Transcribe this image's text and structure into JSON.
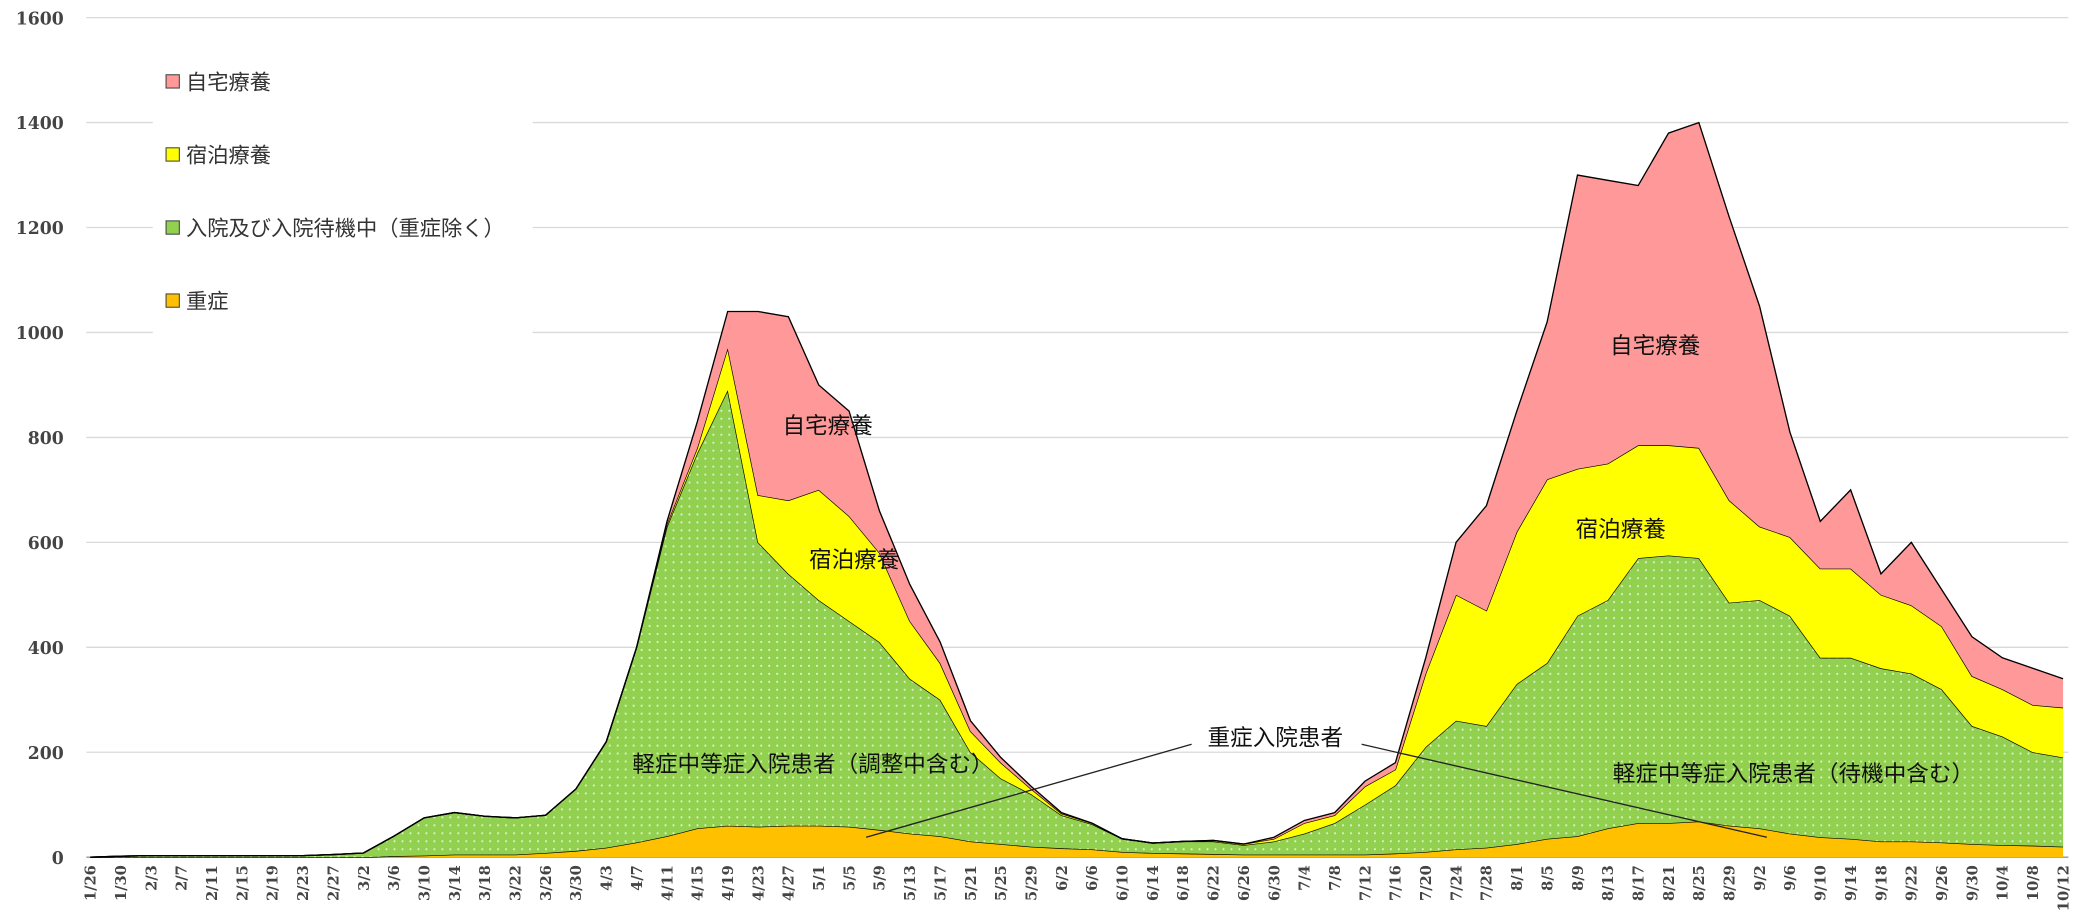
{
  "chart_data": {
    "type": "stacked_area",
    "categories": [
      "1/26",
      "1/30",
      "2/3",
      "2/7",
      "2/11",
      "2/15",
      "2/19",
      "2/23",
      "2/27",
      "3/2",
      "3/6",
      "3/10",
      "3/14",
      "3/18",
      "3/22",
      "3/26",
      "3/30",
      "4/3",
      "4/7",
      "4/11",
      "4/15",
      "4/19",
      "4/23",
      "4/27",
      "5/1",
      "5/5",
      "5/9",
      "5/13",
      "5/17",
      "5/21",
      "5/25",
      "5/29",
      "6/2",
      "6/6",
      "6/10",
      "6/14",
      "6/18",
      "6/22",
      "6/26",
      "6/30",
      "7/4",
      "7/8",
      "7/12",
      "7/16",
      "7/20",
      "7/24",
      "7/28",
      "8/1",
      "8/5",
      "8/9",
      "8/13",
      "8/17",
      "8/21",
      "8/25",
      "8/29",
      "9/2",
      "9/6",
      "9/10",
      "9/14",
      "9/18",
      "9/22",
      "9/26",
      "9/30",
      "10/4",
      "10/8",
      "10/12"
    ],
    "series": [
      {
        "name": "重症",
        "color": "#ffc000",
        "values": [
          0,
          0,
          0,
          0,
          0,
          0,
          0,
          0,
          0,
          0,
          2,
          3,
          5,
          5,
          5,
          8,
          12,
          18,
          28,
          40,
          55,
          60,
          58,
          60,
          60,
          58,
          52,
          45,
          40,
          30,
          25,
          20,
          17,
          15,
          10,
          8,
          7,
          6,
          5,
          5,
          5,
          5,
          5,
          7,
          10,
          15,
          18,
          25,
          35,
          40,
          55,
          65,
          65,
          68,
          60,
          55,
          45,
          38,
          35,
          30,
          30,
          28,
          25,
          23,
          22,
          20
        ]
      },
      {
        "name": "入院及び入院待機中（重症除く）",
        "color": "#92d050",
        "values": [
          0,
          2,
          3,
          3,
          3,
          3,
          3,
          3,
          5,
          8,
          38,
          72,
          80,
          73,
          70,
          72,
          118,
          202,
          372,
          590,
          715,
          830,
          542,
          480,
          430,
          392,
          358,
          295,
          260,
          170,
          125,
          100,
          63,
          48,
          25,
          19,
          23,
          24,
          18,
          25,
          40,
          60,
          95,
          130,
          200,
          245,
          232,
          305,
          335,
          420,
          435,
          505,
          510,
          502,
          425,
          435,
          415,
          342,
          345,
          330,
          320,
          292,
          225,
          207,
          178,
          170
        ]
      },
      {
        "name": "宿泊療養",
        "color": "#ffff00",
        "values": [
          0,
          0,
          0,
          0,
          0,
          0,
          0,
          0,
          0,
          0,
          0,
          0,
          0,
          0,
          0,
          0,
          0,
          0,
          0,
          5,
          10,
          80,
          90,
          140,
          210,
          200,
          170,
          110,
          70,
          40,
          30,
          10,
          3,
          2,
          0,
          0,
          0,
          2,
          2,
          5,
          20,
          15,
          35,
          30,
          140,
          240,
          220,
          290,
          350,
          280,
          260,
          215,
          210,
          210,
          195,
          140,
          150,
          170,
          170,
          140,
          130,
          120,
          95,
          90,
          90,
          95
        ]
      },
      {
        "name": "自宅療養",
        "color": "#ff9999",
        "values": [
          0,
          0,
          0,
          0,
          0,
          0,
          0,
          0,
          0,
          0,
          0,
          0,
          0,
          0,
          0,
          0,
          0,
          0,
          0,
          5,
          50,
          70,
          350,
          350,
          200,
          200,
          80,
          70,
          40,
          20,
          10,
          5,
          2,
          0,
          0,
          0,
          0,
          0,
          0,
          3,
          5,
          5,
          10,
          13,
          30,
          100,
          200,
          230,
          300,
          560,
          540,
          495,
          595,
          620,
          540,
          420,
          200,
          90,
          150,
          40,
          120,
          70,
          75,
          60,
          70,
          55
        ]
      }
    ],
    "ylim": [
      0,
      1600
    ],
    "yticks": [
      0,
      200,
      400,
      600,
      800,
      1000,
      1200,
      1400,
      1600
    ],
    "grid": true,
    "legend": "upper left",
    "annotations": [
      "自宅療養",
      "宿泊療養",
      "軽症中等症入院患者（調整中含む）",
      "自宅療養",
      "宿泊療養",
      "軽症中等症入院患者（待機中含む）",
      "重症入院患者"
    ]
  }
}
